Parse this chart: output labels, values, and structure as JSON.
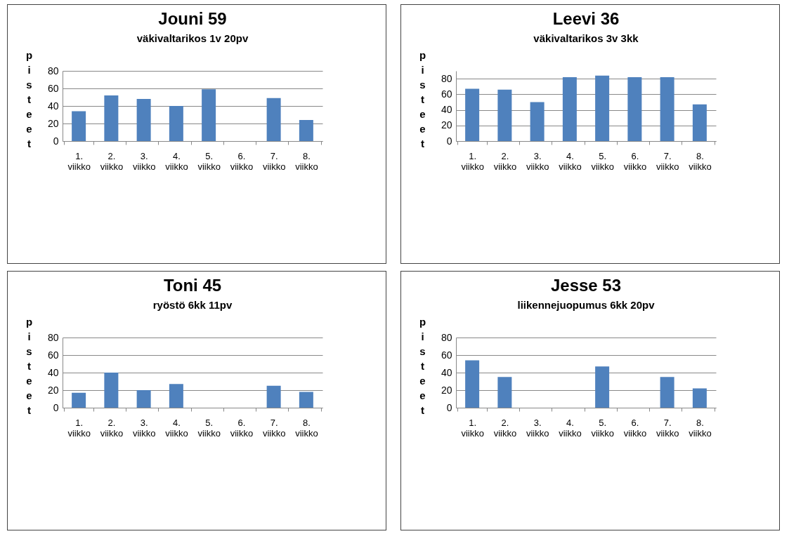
{
  "chart_data": [
    {
      "type": "bar",
      "title": "Jouni 59",
      "subtitle": "väkivaltarikos  1v 20pv",
      "ylabel": "pisteet",
      "categories": [
        "1. viikko",
        "2. viikko",
        "3. viikko",
        "4. viikko",
        "5. viikko",
        "6. viikko",
        "7. viikko",
        "8. viikko"
      ],
      "values": [
        34,
        52,
        48,
        40,
        59,
        null,
        49,
        24
      ],
      "color": "#4f81bd",
      "ylim": [
        0,
        80
      ],
      "yticks": [
        0,
        20,
        40,
        60,
        80
      ],
      "grid": "y"
    },
    {
      "type": "bar",
      "title": "Leevi 36",
      "subtitle": "väkivaltarikos  3v 3kk",
      "ylabel": "pisteet",
      "categories": [
        "1. viikko",
        "2. viikko",
        "3. viikko",
        "4. viikko",
        "5. viikko",
        "6. viikko",
        "7. viikko",
        "8. viikko"
      ],
      "values": [
        67,
        66,
        50,
        82,
        84,
        82,
        82,
        47
      ],
      "color": "#4f81bd",
      "ylim": [
        0,
        90
      ],
      "yticks": [
        0,
        20,
        40,
        60,
        80
      ],
      "grid": "y"
    },
    {
      "type": "bar",
      "title": "Toni 45",
      "subtitle": "ryöstö  6kk 11pv",
      "ylabel": "pisteet",
      "categories": [
        "1. viikko",
        "2. viikko",
        "3. viikko",
        "4. viikko",
        "5. viikko",
        "6. viikko",
        "7. viikko",
        "8. viikko"
      ],
      "values": [
        17,
        40,
        20,
        27,
        null,
        null,
        25,
        18
      ],
      "color": "#4f81bd",
      "ylim": [
        0,
        80
      ],
      "yticks": [
        0,
        20,
        40,
        60,
        80
      ],
      "grid": "y"
    },
    {
      "type": "bar",
      "title": "Jesse  53",
      "subtitle": "liikennejuopumus  6kk 20pv",
      "ylabel": "pisteet",
      "categories": [
        "1. viikko",
        "2. viikko",
        "3. viikko",
        "4. viikko",
        "5. viikko",
        "6. viikko",
        "7. viikko",
        "8. viikko"
      ],
      "values": [
        54,
        35,
        null,
        null,
        47,
        null,
        35,
        22
      ],
      "color": "#4f81bd",
      "ylim": [
        0,
        80
      ],
      "yticks": [
        0,
        20,
        40,
        60,
        80
      ],
      "grid": "y"
    }
  ]
}
